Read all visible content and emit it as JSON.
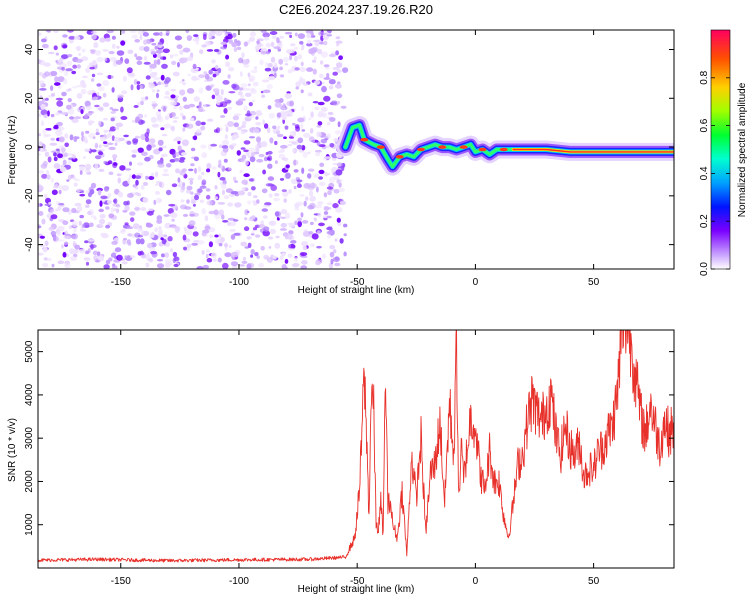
{
  "figure": {
    "title": "C2E6.2024.237.19.26.R20"
  },
  "chart_data": [
    {
      "type": "heatmap",
      "xlabel": "Height of straight line (km)",
      "ylabel": "Frequency (Hz)",
      "xlim": [
        -185,
        84
      ],
      "ylim": [
        -50,
        48
      ],
      "xticks": [
        -150,
        -100,
        -50,
        0,
        50
      ],
      "yticks": [
        -40,
        -20,
        0,
        20,
        40
      ],
      "noise_region_x": [
        -185,
        -55
      ],
      "signal_track": {
        "x": [
          -55,
          -52,
          -49,
          -47,
          -45,
          -43,
          -40,
          -37,
          -35,
          -32,
          -29,
          -26,
          -23,
          -20,
          -17,
          -14,
          -11,
          -8,
          -5,
          -2,
          0,
          3,
          6,
          9,
          12,
          16,
          20,
          25,
          30,
          40,
          50,
          60,
          70,
          84
        ],
        "frequency": [
          0,
          8,
          9,
          3,
          2,
          1,
          0,
          -5,
          -8,
          -4,
          -3,
          -4,
          -1,
          0,
          1,
          0,
          0,
          -1,
          0,
          1,
          -2,
          -1,
          -3,
          -1,
          -1,
          -1,
          -1,
          -1,
          -1,
          -2,
          -2,
          -2,
          -2,
          -2
        ]
      },
      "colorbar": {
        "label": "Normalized spectral amplitude",
        "range": [
          0,
          1
        ],
        "ticks": [
          0.0,
          0.2,
          0.4,
          0.6,
          0.8
        ],
        "tick_labels": [
          "0.0",
          "0.2",
          "0.4",
          "0.6",
          "0.8"
        ]
      }
    },
    {
      "type": "line",
      "xlabel": "Height of straight line (km)",
      "ylabel": "SNR (10 * v/v)",
      "xlim": [
        -185,
        84
      ],
      "ylim": [
        0,
        5500
      ],
      "xticks": [
        -150,
        -100,
        -50,
        0,
        50
      ],
      "yticks": [
        1000,
        2000,
        3000,
        4000,
        5000
      ],
      "line_color": "#e8302a",
      "series": [
        {
          "x": [
            -185,
            -160,
            -130,
            -100,
            -70,
            -55,
            -51,
            -49,
            -47,
            -46,
            -45,
            -44,
            -43,
            -42,
            -41,
            -40,
            -39,
            -38,
            -37,
            -36,
            -35,
            -33,
            -31,
            -29,
            -27,
            -25,
            -23,
            -21,
            -19,
            -17,
            -15,
            -13,
            -11,
            -9,
            -8,
            -7,
            -6,
            -5,
            -4,
            -3,
            -2,
            0,
            2,
            4,
            6,
            8,
            10,
            12,
            14,
            16,
            18,
            20,
            22,
            24,
            26,
            28,
            30,
            32,
            34,
            36,
            38,
            40,
            42,
            44,
            46,
            48,
            50,
            52,
            54,
            56,
            58,
            60,
            62,
            64,
            66,
            68,
            70,
            72,
            74,
            76,
            78,
            80,
            82,
            84
          ],
          "y": [
            180,
            200,
            170,
            190,
            200,
            250,
            700,
            1800,
            4500,
            3000,
            1200,
            4200,
            3600,
            1000,
            900,
            1500,
            800,
            4600,
            1400,
            1600,
            1000,
            700,
            1800,
            300,
            2600,
            1600,
            3000,
            800,
            2200,
            2400,
            3400,
            1500,
            3800,
            2600,
            5300,
            1500,
            2800,
            2000,
            2500,
            3000,
            3500,
            3300,
            2200,
            1800,
            2700,
            2000,
            2000,
            1200,
            700,
            1500,
            2400,
            2600,
            3400,
            3900,
            3600,
            3400,
            3700,
            4000,
            3100,
            2600,
            3300,
            2800,
            2600,
            2900,
            2100,
            2300,
            2300,
            2700,
            2800,
            3100,
            3300,
            4000,
            5500,
            5800,
            5200,
            4300,
            3500,
            3100,
            3800,
            3300,
            2800,
            3400,
            3100,
            3300
          ]
        }
      ]
    }
  ]
}
